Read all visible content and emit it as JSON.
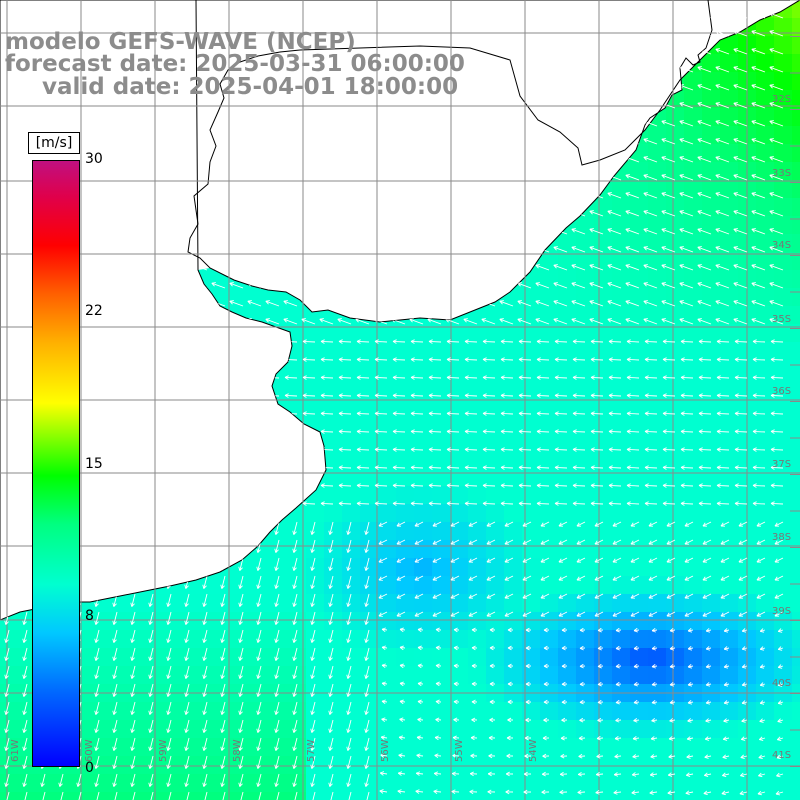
{
  "title": {
    "line1": "modelo GEFS-WAVE (NCEP)",
    "line2": "forecast date: 2025-03-31 06:00:00",
    "line3": "valid date: 2025-04-01 18:00:00"
  },
  "colorbar": {
    "unit": "[m/s]",
    "ticks": [
      {
        "label": "30",
        "value": 30
      },
      {
        "label": "22",
        "value": 22
      },
      {
        "label": "15",
        "value": 15
      },
      {
        "label": "8",
        "value": 8
      },
      {
        "label": "0",
        "value": 0
      }
    ],
    "min": 0,
    "max": 30
  },
  "map": {
    "lat_labels": [
      "32S",
      "33S",
      "34S",
      "35S",
      "36S",
      "37S",
      "38S",
      "39S",
      "40S",
      "41S"
    ],
    "lon_labels": [
      "61W",
      "60W",
      "59W",
      "58W",
      "57W",
      "56W",
      "55W",
      "54W"
    ],
    "colors": {
      "land": "#ffffff",
      "grid": "#8a8a8a",
      "coast": "#000000",
      "arrow": "#ffffff"
    }
  }
}
